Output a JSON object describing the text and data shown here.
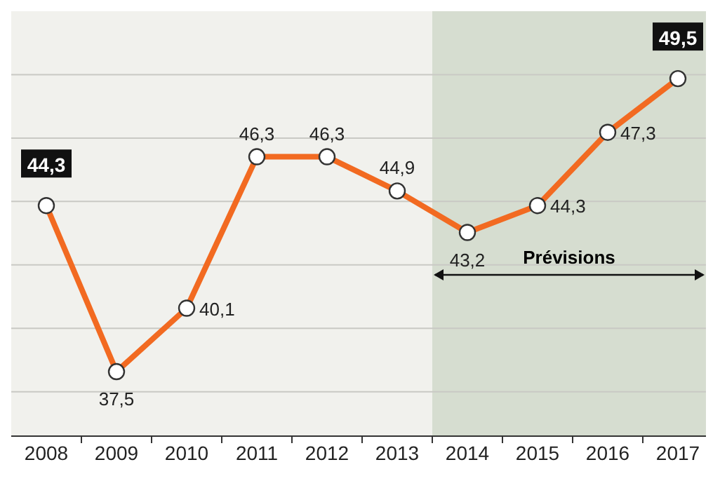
{
  "chart_data": {
    "type": "line",
    "categories": [
      "2008",
      "2009",
      "2010",
      "2011",
      "2012",
      "2013",
      "2014",
      "2015",
      "2016",
      "2017"
    ],
    "series": [
      {
        "color": "#f26a21",
        "values": [
          44.3,
          37.5,
          40.1,
          46.3,
          46.3,
          44.9,
          43.2,
          44.3,
          47.3,
          49.5
        ],
        "value_labels": [
          "44,3",
          "37,5",
          "40,1",
          "46,3",
          "46,3",
          "44,9",
          "43,2",
          "44,3",
          "47,3",
          "49,5"
        ]
      }
    ],
    "marker": "circle",
    "line_style": "solid",
    "grid": "y",
    "tick_labels": "x",
    "bands": [
      {
        "axis": "x",
        "from": "2014",
        "to": "2017",
        "label": "Prévisions",
        "color": "#d6ddd0"
      }
    ]
  }
}
